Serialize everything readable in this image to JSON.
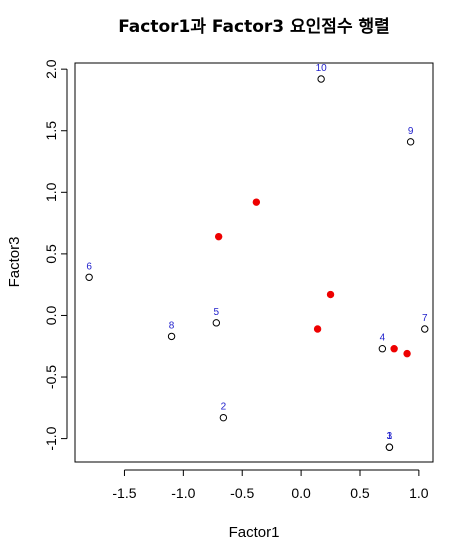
{
  "chart_data": {
    "type": "scatter",
    "title": "Factor1과 Factor3 요인점수 행렬",
    "xlabel": "Factor1",
    "ylabel": "Factor3",
    "xlim": [
      -1.92,
      1.12
    ],
    "ylim": [
      -1.19,
      2.05
    ],
    "x_ticks": [
      -1.5,
      -1.0,
      -0.5,
      0.0,
      0.5,
      1.0
    ],
    "x_tick_labels": [
      "-1.5",
      "-1.0",
      "-0.5",
      "0.0",
      "0.5",
      "1.0"
    ],
    "y_ticks": [
      -1.0,
      -0.5,
      0.0,
      0.5,
      1.0,
      1.5,
      2.0
    ],
    "y_tick_labels": [
      "-1.0",
      "-0.5",
      "0.0",
      "0.5",
      "1.0",
      "1.5",
      "2.0"
    ],
    "grid": false,
    "colors": {
      "label": "#2222cc",
      "highlight": "#ee0000",
      "point": "#000000"
    },
    "series": [
      {
        "marker": "open-circle",
        "points": [
          {
            "label": "1",
            "x": 0.75,
            "y": -1.07
          },
          {
            "label": "2",
            "x": -0.66,
            "y": -0.83
          },
          {
            "label": "3",
            "x": 0.75,
            "y": -1.07
          },
          {
            "label": "4",
            "x": 0.69,
            "y": -0.27
          },
          {
            "label": "5",
            "x": -0.72,
            "y": -0.06
          },
          {
            "label": "6",
            "x": -1.8,
            "y": 0.31
          },
          {
            "label": "7",
            "x": 1.05,
            "y": -0.11
          },
          {
            "label": "8",
            "x": -1.1,
            "y": -0.17
          },
          {
            "label": "9",
            "x": 0.93,
            "y": 1.41
          },
          {
            "label": "10",
            "x": 0.17,
            "y": 1.92
          }
        ]
      },
      {
        "marker": "filled-circle",
        "points": [
          {
            "x": -0.38,
            "y": 0.92
          },
          {
            "x": -0.7,
            "y": 0.64
          },
          {
            "x": 0.25,
            "y": 0.17
          },
          {
            "x": 0.14,
            "y": -0.11
          },
          {
            "x": 0.79,
            "y": -0.27
          },
          {
            "x": 0.9,
            "y": -0.31
          }
        ]
      }
    ]
  }
}
